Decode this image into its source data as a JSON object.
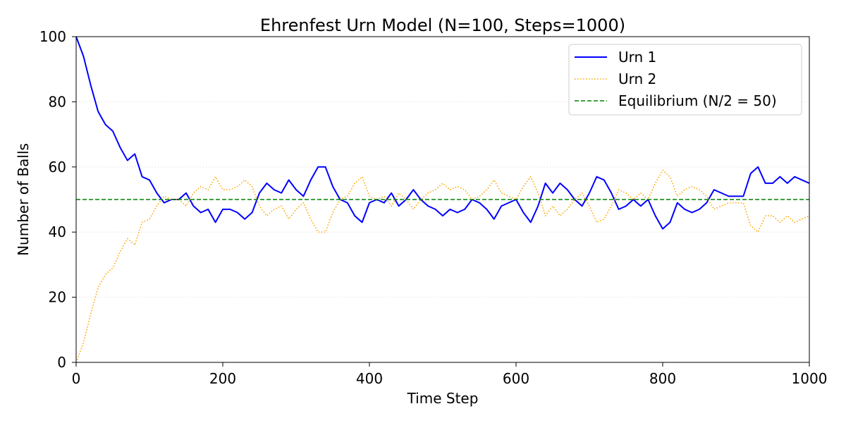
{
  "chart_data": {
    "type": "line",
    "title": "Ehrenfest Urn Model (N=100, Steps=1000)",
    "xlabel": "Time Step",
    "ylabel": "Number of Balls",
    "xlim": [
      0,
      1000
    ],
    "ylim": [
      0,
      100
    ],
    "xticks": [
      "0",
      "200",
      "400",
      "600",
      "800",
      "1000"
    ],
    "yticks": [
      "0",
      "20",
      "40",
      "60",
      "80",
      "100"
    ],
    "grid": "y-dotted",
    "legend_position": "top-right",
    "total": 100,
    "series": [
      {
        "name": "Urn 1",
        "color": "#0000ff",
        "style": "solid",
        "points": [
          [
            0,
            100
          ],
          [
            10,
            94
          ],
          [
            20,
            85
          ],
          [
            30,
            77
          ],
          [
            40,
            73
          ],
          [
            50,
            71
          ],
          [
            60,
            66
          ],
          [
            70,
            62
          ],
          [
            80,
            64
          ],
          [
            90,
            57
          ],
          [
            100,
            56
          ],
          [
            110,
            52
          ],
          [
            120,
            49
          ],
          [
            130,
            50
          ],
          [
            140,
            50
          ],
          [
            150,
            52
          ],
          [
            160,
            48
          ],
          [
            170,
            46
          ],
          [
            180,
            47
          ],
          [
            190,
            43
          ],
          [
            200,
            47
          ],
          [
            210,
            47
          ],
          [
            220,
            46
          ],
          [
            230,
            44
          ],
          [
            240,
            46
          ],
          [
            250,
            52
          ],
          [
            260,
            55
          ],
          [
            270,
            53
          ],
          [
            280,
            52
          ],
          [
            290,
            56
          ],
          [
            300,
            53
          ],
          [
            310,
            51
          ],
          [
            320,
            56
          ],
          [
            330,
            60
          ],
          [
            340,
            60
          ],
          [
            350,
            54
          ],
          [
            360,
            50
          ],
          [
            370,
            49
          ],
          [
            380,
            45
          ],
          [
            390,
            43
          ],
          [
            400,
            49
          ],
          [
            410,
            50
          ],
          [
            420,
            49
          ],
          [
            430,
            52
          ],
          [
            440,
            48
          ],
          [
            450,
            50
          ],
          [
            460,
            53
          ],
          [
            470,
            50
          ],
          [
            480,
            48
          ],
          [
            490,
            47
          ],
          [
            500,
            45
          ],
          [
            510,
            47
          ],
          [
            520,
            46
          ],
          [
            530,
            47
          ],
          [
            540,
            50
          ],
          [
            550,
            49
          ],
          [
            560,
            47
          ],
          [
            570,
            44
          ],
          [
            580,
            48
          ],
          [
            590,
            49
          ],
          [
            600,
            50
          ],
          [
            610,
            46
          ],
          [
            620,
            43
          ],
          [
            630,
            48
          ],
          [
            640,
            55
          ],
          [
            650,
            52
          ],
          [
            660,
            55
          ],
          [
            670,
            53
          ],
          [
            680,
            50
          ],
          [
            690,
            48
          ],
          [
            700,
            52
          ],
          [
            710,
            57
          ],
          [
            720,
            56
          ],
          [
            730,
            52
          ],
          [
            740,
            47
          ],
          [
            750,
            48
          ],
          [
            760,
            50
          ],
          [
            770,
            48
          ],
          [
            780,
            50
          ],
          [
            790,
            45
          ],
          [
            800,
            41
          ],
          [
            810,
            43
          ],
          [
            820,
            49
          ],
          [
            830,
            47
          ],
          [
            840,
            46
          ],
          [
            850,
            47
          ],
          [
            860,
            49
          ],
          [
            870,
            53
          ],
          [
            880,
            52
          ],
          [
            890,
            51
          ],
          [
            900,
            51
          ],
          [
            910,
            51
          ],
          [
            920,
            58
          ],
          [
            930,
            60
          ],
          [
            940,
            55
          ],
          [
            950,
            55
          ],
          [
            960,
            57
          ],
          [
            970,
            55
          ],
          [
            980,
            57
          ],
          [
            990,
            56
          ],
          [
            1000,
            55
          ]
        ]
      },
      {
        "name": "Urn 2",
        "color": "#ffa500",
        "style": "dotted",
        "complement_of": "Urn 1"
      },
      {
        "name": "Equilibrium (N/2 = 50)",
        "color": "#008000",
        "style": "dashed",
        "constant": 50
      }
    ]
  }
}
